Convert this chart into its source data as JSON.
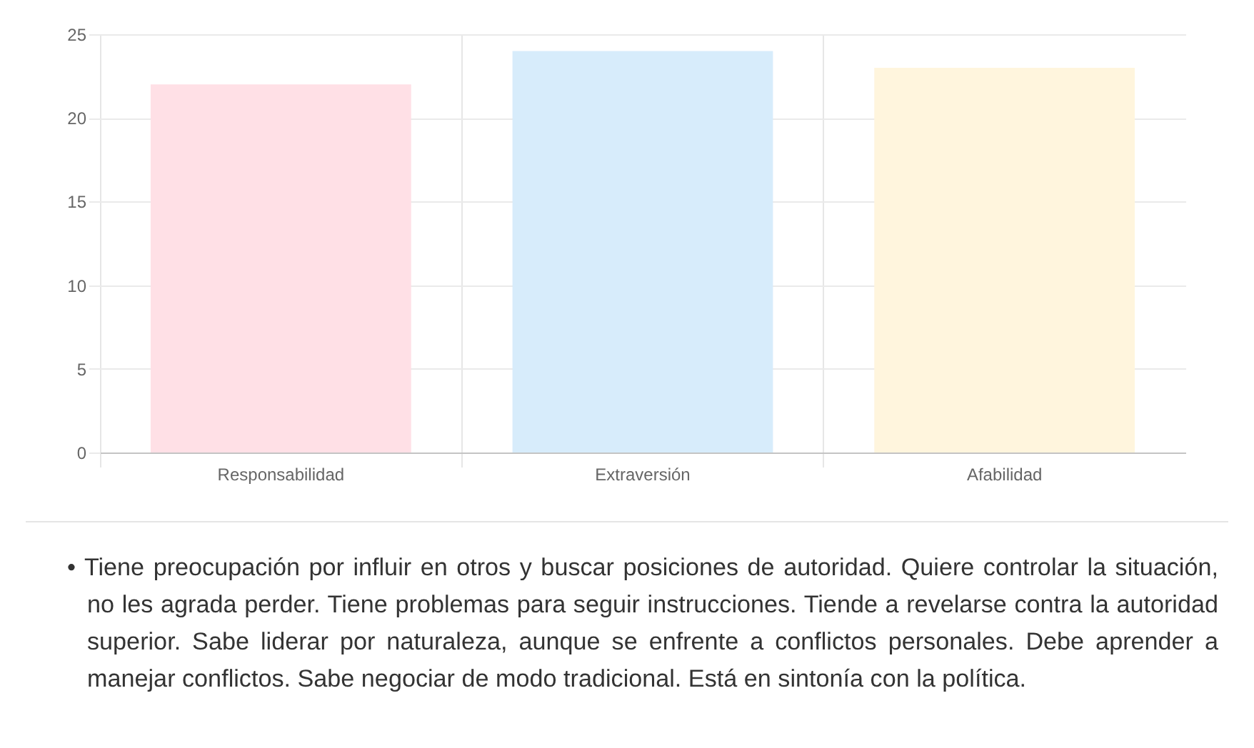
{
  "chart_data": {
    "type": "bar",
    "categories": [
      "Responsabilidad",
      "Extraversión",
      "Afabilidad"
    ],
    "values": [
      22,
      24,
      23
    ],
    "colors": [
      "#ffe0e6",
      "#d7ecfb",
      "#fff5dd"
    ],
    "ylim": [
      0,
      25
    ],
    "yticks": [
      0,
      5,
      10,
      15,
      20,
      25
    ],
    "grid": true,
    "annotations": [
      "• Tiene preocupación por influir en otros y buscar posiciones de autoridad. Quiere controlar la situación, no les agrada perder. Tiene problemas para seguir instrucciones. Tiende a revelarse contra la autoridad superior. Sabe liderar por naturaleza, aunque se enfrente a conflictos personales. Debe aprender a manejar conflictos. Sabe negociar de modo tradicional. Está en sintonía con la política."
    ]
  }
}
